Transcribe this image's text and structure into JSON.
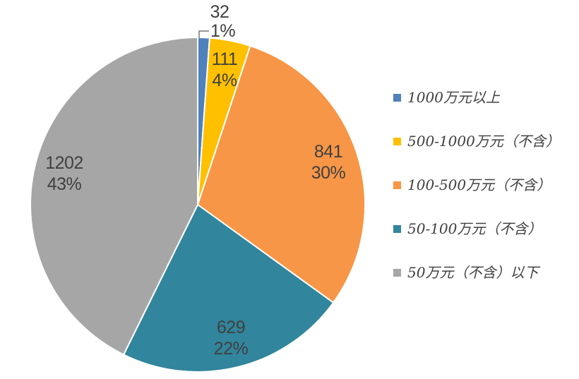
{
  "chart_data": {
    "type": "pie",
    "title": "",
    "direction": "clockwise",
    "start_angle_deg": 0,
    "legend_position": "right",
    "label_format": "value and percent",
    "slices": [
      {
        "label": "1000万元以上",
        "value": 32,
        "pct_label": "1%",
        "color": "#4F81BD",
        "label_placement": "outside"
      },
      {
        "label": "500-1000万元（不含）",
        "value": 111,
        "pct_label": "4%",
        "color": "#FFC000",
        "label_placement": "inside"
      },
      {
        "label": "100-500万元（不含）",
        "value": 841,
        "pct_label": "30%",
        "color": "#F79646",
        "label_placement": "inside"
      },
      {
        "label": "50-100万元（不含）",
        "value": 629,
        "pct_label": "22%",
        "color": "#31859C",
        "label_placement": "inside"
      },
      {
        "label": "50万元（不含）以下",
        "value": 1202,
        "pct_label": "43%",
        "color": "#A6A6A6",
        "label_placement": "inside"
      }
    ],
    "colors": {
      "label_text": "#404040",
      "leader_line": "#595959",
      "slice_border": "#FFFFFF",
      "background": "#FFFFFF"
    }
  }
}
